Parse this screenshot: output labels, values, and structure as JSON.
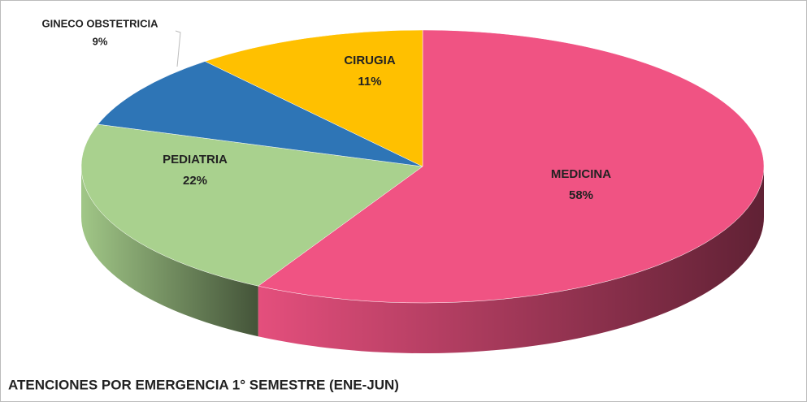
{
  "chart_data": {
    "type": "pie",
    "title": "ATENCIONES POR EMERGENCIA 1° SEMESTRE (ENE-JUN)",
    "categories": [
      "MEDICINA",
      "PEDIATRIA",
      "GINECO OBSTETRICIA",
      "CIRUGIA"
    ],
    "values": [
      58,
      22,
      9,
      11
    ],
    "value_labels": [
      "58%",
      "22%",
      "9%",
      "11%"
    ],
    "colors": [
      "#f05383",
      "#a9d18e",
      "#2e75b6",
      "#ffc000"
    ]
  }
}
